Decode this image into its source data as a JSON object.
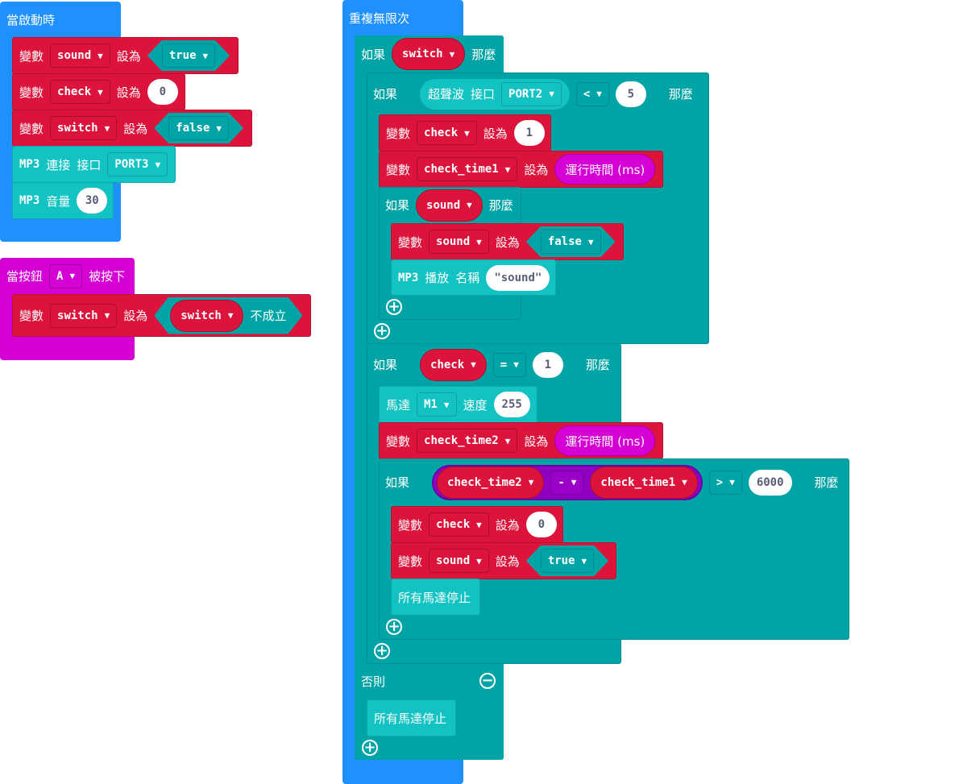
{
  "colors": {
    "events": "#1e90ff",
    "variables": "#dc143c",
    "logic": "#00a4a6",
    "mp3_motor": "#13c2c2",
    "input": "#d400d4",
    "math": "#9b00c8"
  },
  "words": {
    "set_var": "變數",
    "set_to": "設為",
    "if": "如果",
    "then": "那麼",
    "else": "否則",
    "not": "不成立",
    "runtime": "運行時間 (ms)",
    "stop_all": "所有馬達停止",
    "mp3": "MP3",
    "connect": "連接",
    "port": "接口",
    "volume": "音量",
    "play": "播放",
    "name": "名稱",
    "ultrasonic": "超聲波",
    "motor": "馬達",
    "speed": "速度",
    "pressed": "被按下",
    "button": "當按鈕"
  },
  "on_start": {
    "title": "當啟動時",
    "v1": "sound",
    "val1": "true",
    "v2": "check",
    "val2": "0",
    "v3": "switch",
    "val3": "false",
    "mp3_port": "PORT3",
    "volume": "30"
  },
  "on_button": {
    "button": "A",
    "var": "switch",
    "not_var": "switch"
  },
  "forever": {
    "title": "重複無限次",
    "cond": "switch",
    "us_port": "PORT2",
    "op1": "<",
    "cmp1": "5",
    "set_check": "check",
    "set_check_val": "1",
    "set_t1": "check_time1",
    "cond_sound": "sound",
    "set_sound": "sound",
    "set_sound_val": "false",
    "play_name": "\"sound\"",
    "cond_check": "check",
    "op2": "=",
    "cmp2": "1",
    "motor": "M1",
    "motor_speed": "255",
    "set_t2": "check_time2",
    "sub_a": "check_time2",
    "sub_op": "-",
    "sub_b": "check_time1",
    "op3": ">",
    "cmp3": "6000",
    "set_check2": "check",
    "set_check2_val": "0",
    "set_sound2": "sound",
    "set_sound2_val": "true"
  },
  "icons": {
    "add": "plus-circle-icon",
    "remove": "minus-circle-icon",
    "dropdown": "caret-down-icon"
  }
}
